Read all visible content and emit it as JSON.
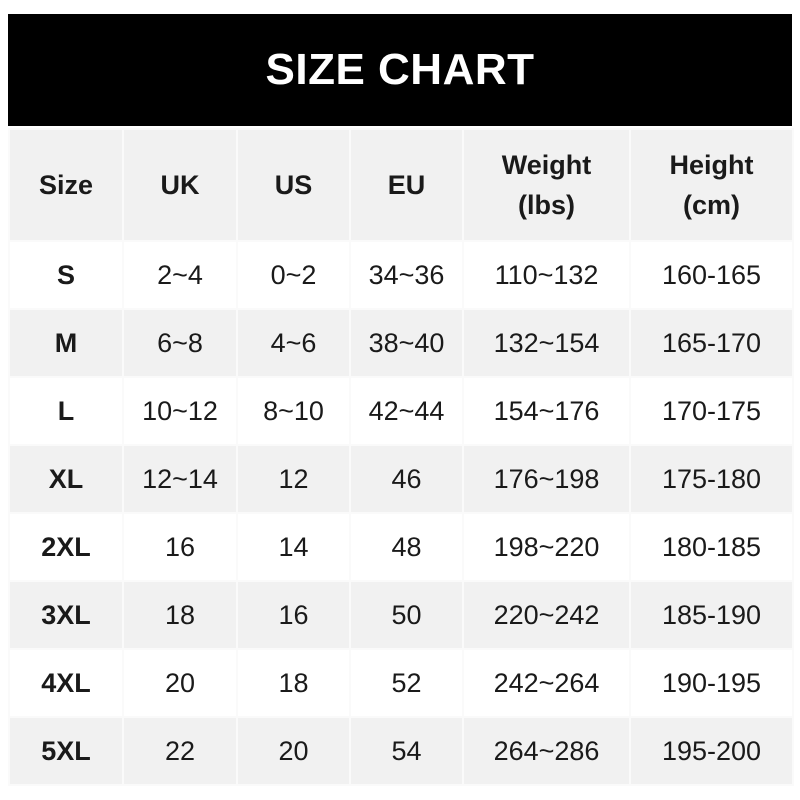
{
  "title": "SIZE CHART",
  "headers": [
    "Size",
    "UK",
    "US",
    "EU",
    "Weight\n(lbs)",
    "Height\n(cm)"
  ],
  "rows": [
    [
      "S",
      "2~4",
      "0~2",
      "34~36",
      "110~132",
      "160-165"
    ],
    [
      "M",
      "6~8",
      "4~6",
      "38~40",
      "132~154",
      "165-170"
    ],
    [
      "L",
      "10~12",
      "8~10",
      "42~44",
      "154~176",
      "170-175"
    ],
    [
      "XL",
      "12~14",
      "12",
      "46",
      "176~198",
      "175-180"
    ],
    [
      "2XL",
      "16",
      "14",
      "48",
      "198~220",
      "180-185"
    ],
    [
      "3XL",
      "18",
      "16",
      "50",
      "220~242",
      "185-190"
    ],
    [
      "4XL",
      "20",
      "18",
      "52",
      "242~264",
      "190-195"
    ],
    [
      "5XL",
      "22",
      "20",
      "54",
      "264~286",
      "195-200"
    ]
  ],
  "colors": {
    "banner": "#000000",
    "stripe": "#f1f1f1",
    "text": "#1a1a1a"
  }
}
